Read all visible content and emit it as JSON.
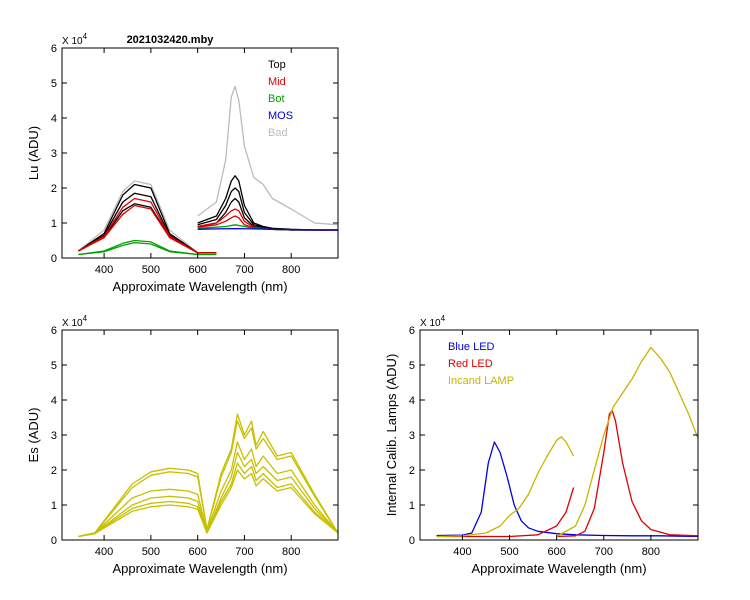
{
  "chart_data": [
    {
      "id": "lu",
      "type": "line",
      "title": "2021032420.mby",
      "ylabel": "Lu (ADU)",
      "xlabel": "Approximate Wavelength (nm)",
      "ymult": "X 10",
      "ymult_exp": "4",
      "xlim": [
        310,
        900
      ],
      "ylim": [
        0,
        6
      ],
      "xticks": [
        400,
        500,
        600,
        700,
        800
      ],
      "yticks": [
        0,
        1,
        2,
        3,
        4,
        5,
        6
      ],
      "legend": [
        {
          "label": "Top",
          "color": "#000000"
        },
        {
          "label": "Mid",
          "color": "#e00000"
        },
        {
          "label": "Bot",
          "color": "#00a000"
        },
        {
          "label": "MOS",
          "color": "#0000e0"
        },
        {
          "label": "Bad",
          "color": "#bbbbbb"
        }
      ],
      "series": [
        {
          "name": "Bad",
          "color": "#bbbbbb",
          "x": [
            345,
            400,
            440,
            465,
            500,
            540,
            600,
            640
          ],
          "y": [
            0.2,
            0.8,
            1.9,
            2.2,
            2.1,
            0.8,
            0.15,
            0.15
          ]
        },
        {
          "name": "Bad",
          "color": "#bbbbbb",
          "x": [
            600,
            640,
            660,
            672,
            680,
            688,
            700,
            720,
            740,
            760,
            800,
            850,
            900
          ],
          "y": [
            1.2,
            1.6,
            2.8,
            4.6,
            4.9,
            4.5,
            3.2,
            2.3,
            2.1,
            1.7,
            1.4,
            1.0,
            0.95
          ]
        },
        {
          "name": "Top",
          "color": "#000000",
          "x": [
            345,
            400,
            440,
            465,
            500,
            540,
            600,
            640
          ],
          "y": [
            0.2,
            0.7,
            1.8,
            2.1,
            2.0,
            0.7,
            0.15,
            0.15
          ]
        },
        {
          "name": "Top",
          "color": "#000000",
          "x": [
            345,
            400,
            440,
            465,
            500,
            540,
            600,
            640
          ],
          "y": [
            0.2,
            0.65,
            1.6,
            1.85,
            1.75,
            0.65,
            0.15,
            0.15
          ]
        },
        {
          "name": "Top",
          "color": "#000000",
          "x": [
            345,
            400,
            440,
            465,
            500,
            540,
            600,
            640
          ],
          "y": [
            0.2,
            0.6,
            1.35,
            1.55,
            1.45,
            0.6,
            0.15,
            0.15
          ]
        },
        {
          "name": "Mid",
          "color": "#e00000",
          "x": [
            345,
            400,
            440,
            465,
            500,
            540,
            600,
            640
          ],
          "y": [
            0.2,
            0.62,
            1.45,
            1.7,
            1.6,
            0.62,
            0.15,
            0.15
          ]
        },
        {
          "name": "Mid",
          "color": "#e00000",
          "x": [
            345,
            400,
            440,
            465,
            500,
            540,
            600,
            640
          ],
          "y": [
            0.2,
            0.58,
            1.25,
            1.5,
            1.4,
            0.58,
            0.15,
            0.15
          ]
        },
        {
          "name": "Bot",
          "color": "#00a000",
          "x": [
            345,
            400,
            440,
            465,
            500,
            540,
            600,
            640
          ],
          "y": [
            0.1,
            0.2,
            0.42,
            0.5,
            0.46,
            0.2,
            0.1,
            0.1
          ]
        },
        {
          "name": "Bot",
          "color": "#00a000",
          "x": [
            345,
            400,
            440,
            465,
            500,
            540,
            600,
            640
          ],
          "y": [
            0.1,
            0.18,
            0.36,
            0.44,
            0.4,
            0.18,
            0.1,
            0.1
          ]
        },
        {
          "name": "Top",
          "color": "#000000",
          "x": [
            600,
            640,
            660,
            672,
            680,
            688,
            700,
            720,
            740,
            760,
            800,
            850,
            900
          ],
          "y": [
            1.0,
            1.2,
            1.7,
            2.2,
            2.35,
            2.2,
            1.5,
            1.0,
            0.9,
            0.85,
            0.82,
            0.8,
            0.8
          ]
        },
        {
          "name": "Top",
          "color": "#000000",
          "x": [
            600,
            640,
            660,
            672,
            680,
            688,
            700,
            720,
            740,
            760,
            800,
            850,
            900
          ],
          "y": [
            0.95,
            1.1,
            1.5,
            1.9,
            2.0,
            1.9,
            1.3,
            0.95,
            0.88,
            0.84,
            0.81,
            0.8,
            0.8
          ]
        },
        {
          "name": "Top",
          "color": "#000000",
          "x": [
            600,
            640,
            660,
            672,
            680,
            688,
            700,
            720,
            740,
            760,
            800,
            850,
            900
          ],
          "y": [
            0.9,
            1.0,
            1.3,
            1.6,
            1.7,
            1.6,
            1.15,
            0.9,
            0.86,
            0.83,
            0.8,
            0.8,
            0.8
          ]
        },
        {
          "name": "Mid",
          "color": "#e00000",
          "x": [
            600,
            640,
            660,
            672,
            680,
            688,
            700,
            720,
            740,
            760,
            800,
            850,
            900
          ],
          "y": [
            0.9,
            1.0,
            1.2,
            1.35,
            1.4,
            1.35,
            1.05,
            0.88,
            0.85,
            0.82,
            0.8,
            0.8,
            0.8
          ]
        },
        {
          "name": "Mid",
          "color": "#e00000",
          "x": [
            600,
            640,
            660,
            672,
            680,
            688,
            700,
            720,
            740,
            760,
            800,
            850,
            900
          ],
          "y": [
            0.88,
            0.95,
            1.05,
            1.15,
            1.2,
            1.15,
            0.95,
            0.86,
            0.84,
            0.82,
            0.8,
            0.8,
            0.8
          ]
        },
        {
          "name": "Bot",
          "color": "#00a000",
          "x": [
            600,
            640,
            660,
            680,
            700,
            720,
            760,
            800,
            850,
            900
          ],
          "y": [
            0.85,
            0.88,
            0.9,
            0.95,
            0.9,
            0.85,
            0.82,
            0.8,
            0.8,
            0.8
          ]
        },
        {
          "name": "MOS",
          "color": "#0000e0",
          "x": [
            600,
            640,
            680,
            720,
            760,
            800,
            850,
            900
          ],
          "y": [
            0.82,
            0.83,
            0.84,
            0.83,
            0.82,
            0.81,
            0.8,
            0.8
          ]
        }
      ]
    },
    {
      "id": "es",
      "type": "line",
      "ylabel": "Es  (ADU)",
      "xlabel": "Approximate Wavelength (nm)",
      "ymult": "X 10",
      "ymult_exp": "4",
      "xlim": [
        310,
        900
      ],
      "ylim": [
        0,
        6
      ],
      "xticks": [
        400,
        500,
        600,
        700,
        800
      ],
      "yticks": [
        0,
        1,
        2,
        3,
        4,
        5,
        6
      ],
      "series": [
        {
          "name": "Es",
          "color": "#c8c000",
          "x": [
            345,
            380,
            420,
            460,
            500,
            540,
            580,
            600,
            620,
            650,
            672,
            685,
            700,
            715,
            725,
            740,
            770,
            800,
            850,
            900
          ],
          "y": [
            0.1,
            0.2,
            0.9,
            1.6,
            1.95,
            2.05,
            2.0,
            1.9,
            0.3,
            1.9,
            2.6,
            3.6,
            3.0,
            3.4,
            2.7,
            3.1,
            2.4,
            2.5,
            1.3,
            0.2
          ]
        },
        {
          "name": "Es",
          "color": "#c8c000",
          "x": [
            345,
            380,
            420,
            460,
            500,
            540,
            580,
            600,
            620,
            650,
            672,
            685,
            700,
            715,
            725,
            740,
            770,
            800,
            850,
            900
          ],
          "y": [
            0.1,
            0.2,
            0.85,
            1.5,
            1.85,
            1.95,
            1.9,
            1.8,
            0.3,
            1.8,
            2.5,
            3.4,
            2.9,
            3.2,
            2.6,
            2.9,
            2.3,
            2.4,
            1.25,
            0.2
          ]
        },
        {
          "name": "Es",
          "color": "#c8c000",
          "x": [
            345,
            380,
            420,
            460,
            500,
            540,
            580,
            600,
            620,
            650,
            672,
            685,
            700,
            715,
            725,
            740,
            770,
            800,
            850,
            900
          ],
          "y": [
            0.1,
            0.2,
            0.7,
            1.2,
            1.4,
            1.45,
            1.4,
            1.3,
            0.25,
            1.4,
            2.0,
            2.8,
            2.3,
            2.6,
            2.1,
            2.4,
            1.9,
            2.0,
            1.0,
            0.2
          ]
        },
        {
          "name": "Es",
          "color": "#c8c000",
          "x": [
            345,
            380,
            420,
            460,
            500,
            540,
            580,
            600,
            620,
            650,
            672,
            685,
            700,
            715,
            725,
            740,
            770,
            800,
            850,
            900
          ],
          "y": [
            0.1,
            0.2,
            0.6,
            1.0,
            1.2,
            1.25,
            1.2,
            1.1,
            0.2,
            1.2,
            1.8,
            2.5,
            2.1,
            2.3,
            1.9,
            2.1,
            1.7,
            1.8,
            0.9,
            0.2
          ]
        },
        {
          "name": "Es",
          "color": "#c8c000",
          "x": [
            345,
            380,
            420,
            460,
            500,
            540,
            580,
            600,
            620,
            650,
            672,
            685,
            700,
            715,
            725,
            740,
            770,
            800,
            850,
            900
          ],
          "y": [
            0.1,
            0.18,
            0.55,
            0.9,
            1.05,
            1.1,
            1.05,
            0.95,
            0.2,
            1.1,
            1.6,
            2.2,
            1.9,
            2.1,
            1.7,
            1.9,
            1.5,
            1.6,
            0.8,
            0.2
          ]
        },
        {
          "name": "Es",
          "color": "#c8c000",
          "x": [
            345,
            380,
            420,
            460,
            500,
            540,
            580,
            600,
            620,
            650,
            672,
            685,
            700,
            715,
            725,
            740,
            770,
            800,
            850,
            900
          ],
          "y": [
            0.1,
            0.18,
            0.5,
            0.82,
            0.95,
            1.0,
            0.95,
            0.88,
            0.2,
            1.0,
            1.5,
            2.0,
            1.75,
            1.9,
            1.55,
            1.75,
            1.4,
            1.5,
            0.75,
            0.2
          ]
        }
      ]
    },
    {
      "id": "lamps",
      "type": "line",
      "ylabel": "Internal Calib. Lamps  (ADU)",
      "xlabel": "Approximate Wavelength (nm)",
      "ymult": "X 10",
      "ymult_exp": "4",
      "xlim": [
        310,
        900
      ],
      "ylim": [
        0,
        6
      ],
      "xticks": [
        400,
        500,
        600,
        700,
        800
      ],
      "yticks": [
        0,
        1,
        2,
        3,
        4,
        5,
        6
      ],
      "legend": [
        {
          "label": "Blue LED",
          "color": "#0000e0"
        },
        {
          "label": "Red LED",
          "color": "#e00000"
        },
        {
          "label": "Incand LAMP",
          "color": "#c8b400"
        }
      ],
      "series": [
        {
          "name": "Blue LED",
          "color": "#0000e0",
          "x": [
            345,
            400,
            420,
            440,
            455,
            468,
            480,
            495,
            510,
            525,
            540,
            560,
            600,
            640,
            700,
            760,
            820,
            900
          ],
          "y": [
            0.13,
            0.14,
            0.2,
            0.8,
            2.2,
            2.8,
            2.5,
            1.8,
            1.0,
            0.55,
            0.35,
            0.25,
            0.18,
            0.15,
            0.13,
            0.12,
            0.12,
            0.1
          ]
        },
        {
          "name": "Red LED",
          "color": "#e00000",
          "x": [
            345,
            400,
            500,
            560,
            600,
            620,
            636
          ],
          "y": [
            0.1,
            0.1,
            0.1,
            0.15,
            0.4,
            0.8,
            1.5
          ]
        },
        {
          "name": "Red LED",
          "color": "#e00000",
          "x": [
            600,
            640,
            660,
            680,
            700,
            712,
            718,
            725,
            740,
            760,
            780,
            800,
            840,
            900
          ],
          "y": [
            0.1,
            0.12,
            0.25,
            0.9,
            2.5,
            3.6,
            3.7,
            3.4,
            2.2,
            1.1,
            0.55,
            0.3,
            0.15,
            0.12
          ]
        },
        {
          "name": "Incand LAMP",
          "color": "#c8b400",
          "x": [
            345,
            400,
            450,
            480,
            500,
            520,
            540,
            560,
            580,
            600,
            610,
            620,
            636
          ],
          "y": [
            0.1,
            0.12,
            0.2,
            0.4,
            0.7,
            0.9,
            1.3,
            1.9,
            2.4,
            2.85,
            2.95,
            2.8,
            2.4
          ]
        },
        {
          "name": "Incand LAMP",
          "color": "#c8b400",
          "x": [
            600,
            640,
            660,
            680,
            700,
            720,
            740,
            760,
            780,
            800,
            820,
            840,
            860,
            880,
            900
          ],
          "y": [
            0.1,
            0.4,
            1.0,
            2.0,
            3.0,
            3.8,
            4.2,
            4.6,
            5.1,
            5.5,
            5.2,
            4.8,
            4.2,
            3.6,
            2.9
          ]
        }
      ]
    }
  ]
}
